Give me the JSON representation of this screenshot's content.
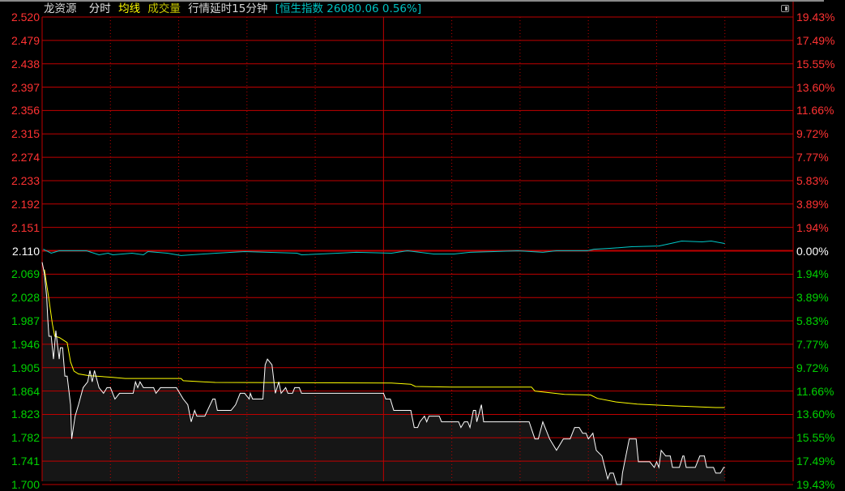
{
  "header": {
    "stock_name": "龙资源",
    "tab_timeshare": "分时",
    "avg_line_label": "均线",
    "volume_label": "成交量",
    "delay_notice": "行情延时15分钟",
    "index_info": "[恒生指数 26080.06 0.56%]"
  },
  "colors": {
    "up": "#ff3232",
    "down": "#00d200",
    "flat": "#ffffff",
    "grid": "#c00000",
    "price_line": "#ffffff",
    "avg_line": "#ffff00",
    "index_line": "#00c8c8",
    "header_index": "#00c0c0",
    "fill": "#161616"
  },
  "chart_data": {
    "type": "line",
    "prev_close": 2.11,
    "ylim": [
      1.7,
      2.52
    ],
    "xlim_minutes": [
      0,
      330
    ],
    "left_ticks": [
      "2.520",
      "2.479",
      "2.438",
      "2.397",
      "2.356",
      "2.315",
      "2.274",
      "2.233",
      "2.192",
      "2.151",
      "2.110",
      "2.069",
      "2.028",
      "1.987",
      "1.946",
      "1.905",
      "1.864",
      "1.823",
      "1.782",
      "1.741",
      "1.700"
    ],
    "right_ticks": [
      "19.43%",
      "17.49%",
      "15.55%",
      "13.60%",
      "11.66%",
      "9.72%",
      "7.77%",
      "5.83%",
      "3.89%",
      "1.94%",
      "0.00%",
      "1.94%",
      "3.89%",
      "5.83%",
      "7.77%",
      "9.72%",
      "11.66%",
      "13.60%",
      "15.55%",
      "17.49%",
      "19.43%"
    ],
    "grid": true,
    "series": [
      {
        "key": "price",
        "points": [
          [
            0,
            2.09
          ],
          [
            1,
            2.07
          ],
          [
            2,
            2.03
          ],
          [
            2.5,
            1.99
          ],
          [
            3,
            1.96
          ],
          [
            4,
            1.96
          ],
          [
            5,
            1.92
          ],
          [
            6,
            1.97
          ],
          [
            7.5,
            1.92
          ],
          [
            8,
            1.94
          ],
          [
            9,
            1.94
          ],
          [
            10,
            1.89
          ],
          [
            11,
            1.89
          ],
          [
            12.5,
            1.84
          ],
          [
            13,
            1.78
          ],
          [
            14.5,
            1.82
          ],
          [
            16,
            1.84
          ],
          [
            18,
            1.87
          ],
          [
            20,
            1.88
          ],
          [
            21,
            1.9
          ],
          [
            22,
            1.88
          ],
          [
            23,
            1.9
          ],
          [
            25,
            1.87
          ],
          [
            27,
            1.86
          ],
          [
            28.5,
            1.87
          ],
          [
            30,
            1.87
          ],
          [
            32,
            1.85
          ],
          [
            34,
            1.86
          ],
          [
            40,
            1.86
          ],
          [
            41,
            1.88
          ],
          [
            42,
            1.87
          ],
          [
            43,
            1.88
          ],
          [
            44.5,
            1.87
          ],
          [
            49,
            1.87
          ],
          [
            50,
            1.86
          ],
          [
            52,
            1.87
          ],
          [
            59,
            1.87
          ],
          [
            62,
            1.85
          ],
          [
            64,
            1.84
          ],
          [
            65.5,
            1.81
          ],
          [
            67,
            1.83
          ],
          [
            68,
            1.82
          ],
          [
            71.5,
            1.82
          ],
          [
            75,
            1.85
          ],
          [
            76,
            1.85
          ],
          [
            77,
            1.83
          ],
          [
            83,
            1.83
          ],
          [
            85,
            1.84
          ],
          [
            87,
            1.86
          ],
          [
            89,
            1.86
          ],
          [
            91,
            1.85
          ],
          [
            91.5,
            1.86
          ],
          [
            92.5,
            1.85
          ],
          [
            97,
            1.85
          ],
          [
            98,
            1.91
          ],
          [
            99,
            1.92
          ],
          [
            101,
            1.91
          ],
          [
            102.5,
            1.86
          ],
          [
            104,
            1.88
          ],
          [
            105,
            1.86
          ],
          [
            107,
            1.87
          ],
          [
            108,
            1.86
          ],
          [
            110,
            1.86
          ],
          [
            111,
            1.87
          ],
          [
            113,
            1.87
          ],
          [
            114,
            1.86
          ],
          [
            150,
            1.86
          ],
          [
            151,
            1.85
          ],
          [
            153,
            1.85
          ],
          [
            154.5,
            1.83
          ],
          [
            162,
            1.83
          ],
          [
            163.5,
            1.8
          ],
          [
            165,
            1.8
          ],
          [
            166,
            1.81
          ],
          [
            168,
            1.82
          ],
          [
            169,
            1.81
          ],
          [
            170,
            1.82
          ],
          [
            174.5,
            1.82
          ],
          [
            175.5,
            1.81
          ],
          [
            183,
            1.81
          ],
          [
            184,
            1.8
          ],
          [
            185.5,
            1.81
          ],
          [
            187,
            1.81
          ],
          [
            188,
            1.8
          ],
          [
            189.5,
            1.83
          ],
          [
            190.5,
            1.83
          ],
          [
            191,
            1.81
          ],
          [
            193,
            1.84
          ],
          [
            194,
            1.81
          ],
          [
            214,
            1.81
          ],
          [
            216.5,
            1.78
          ],
          [
            218,
            1.78
          ],
          [
            220,
            1.81
          ],
          [
            223,
            1.78
          ],
          [
            226,
            1.76
          ],
          [
            229,
            1.78
          ],
          [
            232,
            1.78
          ],
          [
            234,
            1.8
          ],
          [
            236,
            1.8
          ],
          [
            237.5,
            1.79
          ],
          [
            239,
            1.79
          ],
          [
            240,
            1.78
          ],
          [
            242,
            1.79
          ],
          [
            243.5,
            1.76
          ],
          [
            246,
            1.75
          ],
          [
            248.5,
            1.71
          ],
          [
            249.5,
            1.72
          ],
          [
            251,
            1.72
          ],
          [
            252.5,
            1.7
          ],
          [
            254.5,
            1.7
          ],
          [
            255,
            1.72
          ],
          [
            258,
            1.78
          ],
          [
            261,
            1.78
          ],
          [
            262,
            1.74
          ],
          [
            267,
            1.74
          ],
          [
            269,
            1.73
          ],
          [
            270,
            1.74
          ],
          [
            271,
            1.73
          ],
          [
            272,
            1.76
          ],
          [
            274,
            1.75
          ],
          [
            276,
            1.75
          ],
          [
            277,
            1.73
          ],
          [
            280,
            1.73
          ],
          [
            281.5,
            1.75
          ],
          [
            282,
            1.75
          ],
          [
            283,
            1.73
          ],
          [
            287,
            1.73
          ],
          [
            289,
            1.75
          ],
          [
            291,
            1.75
          ],
          [
            292,
            1.73
          ],
          [
            295,
            1.73
          ],
          [
            296,
            1.72
          ],
          [
            298,
            1.72
          ],
          [
            299.5,
            1.73
          ],
          [
            300,
            1.73
          ]
        ]
      },
      {
        "key": "average",
        "points": [
          [
            1,
            2.077
          ],
          [
            3,
            2.025
          ],
          [
            4.5,
            1.982
          ],
          [
            5.5,
            1.96
          ],
          [
            7.5,
            1.958
          ],
          [
            11,
            1.949
          ],
          [
            12.5,
            1.915
          ],
          [
            14,
            1.899
          ],
          [
            16,
            1.894
          ],
          [
            20.5,
            1.891
          ],
          [
            31,
            1.888
          ],
          [
            36.5,
            1.886
          ],
          [
            61,
            1.886
          ],
          [
            62,
            1.882
          ],
          [
            76,
            1.879
          ],
          [
            153.5,
            1.878
          ],
          [
            162,
            1.876
          ],
          [
            164,
            1.872
          ],
          [
            180,
            1.871
          ],
          [
            215,
            1.871
          ],
          [
            216.5,
            1.864
          ],
          [
            229.5,
            1.858
          ],
          [
            241,
            1.857
          ],
          [
            244,
            1.851
          ],
          [
            252,
            1.845
          ],
          [
            261.5,
            1.841
          ],
          [
            277,
            1.838
          ],
          [
            296,
            1.835
          ],
          [
            300,
            1.835
          ]
        ]
      },
      {
        "key": "index_pct",
        "points": [
          [
            0.5,
            0.13
          ],
          [
            4,
            -0.2
          ],
          [
            7.5,
            0
          ],
          [
            19.5,
            0
          ],
          [
            25,
            -0.34
          ],
          [
            29,
            -0.2
          ],
          [
            31,
            -0.34
          ],
          [
            39.5,
            -0.2
          ],
          [
            44.5,
            -0.34
          ],
          [
            46.5,
            -0.07
          ],
          [
            55,
            -0.2
          ],
          [
            61,
            -0.4
          ],
          [
            76.5,
            -0.2
          ],
          [
            89,
            -0.07
          ],
          [
            112,
            -0.2
          ],
          [
            114,
            -0.34
          ],
          [
            130,
            -0.2
          ],
          [
            138,
            -0.13
          ],
          [
            153.5,
            -0.2
          ],
          [
            160.5,
            0
          ],
          [
            172,
            -0.27
          ],
          [
            181,
            -0.27
          ],
          [
            188,
            -0.13
          ],
          [
            198.5,
            -0.07
          ],
          [
            209,
            0
          ],
          [
            220,
            -0.13
          ],
          [
            226,
            0
          ],
          [
            239.5,
            0
          ],
          [
            242.5,
            0.13
          ],
          [
            249.5,
            0.2
          ],
          [
            259,
            0.34
          ],
          [
            271,
            0.4
          ],
          [
            276,
            0.6
          ],
          [
            281,
            0.81
          ],
          [
            290,
            0.74
          ],
          [
            294,
            0.81
          ],
          [
            300,
            0.6
          ]
        ]
      }
    ]
  }
}
